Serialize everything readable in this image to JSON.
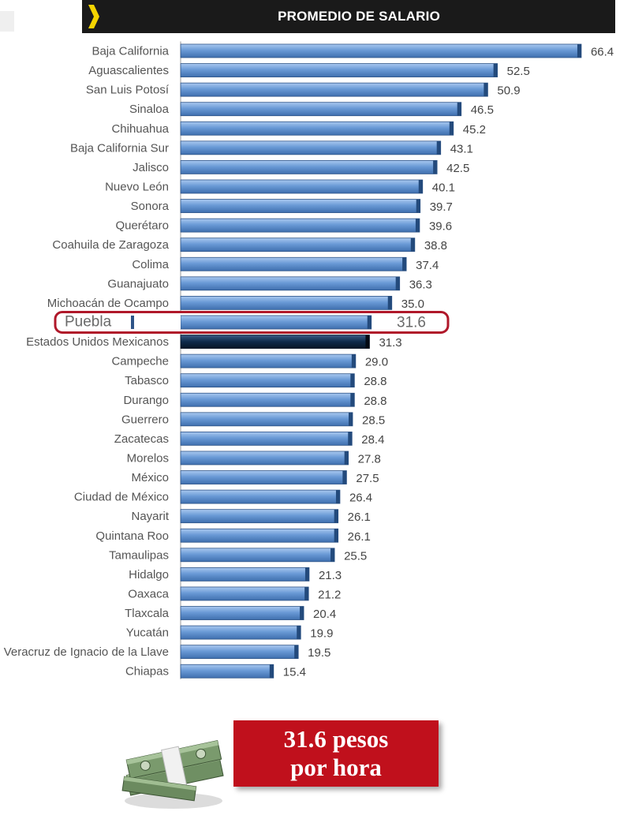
{
  "header": {
    "title": "PROMEDIO DE SALARIO"
  },
  "chart_data": {
    "type": "bar",
    "orientation": "horizontal",
    "title": "PROMEDIO DE SALARIO",
    "categories": [
      "Baja California",
      "Aguascalientes",
      "San Luis Potosí",
      "Sinaloa",
      "Chihuahua",
      "Baja California Sur",
      "Jalisco",
      "Nuevo León",
      "Sonora",
      "Querétaro",
      "Coahuila de Zaragoza",
      "Colima",
      "Guanajuato",
      "Michoacán de Ocampo",
      "Puebla",
      "Estados Unidos Mexicanos",
      "Campeche",
      "Tabasco",
      "Durango",
      "Guerrero",
      "Zacatecas",
      "Morelos",
      "México",
      "Ciudad de México",
      "Nayarit",
      "Quintana Roo",
      "Tamaulipas",
      "Hidalgo",
      "Oaxaca",
      "Tlaxcala",
      "Yucatán",
      "Veracruz de Ignacio de la Llave",
      "Chiapas"
    ],
    "values": [
      66.4,
      52.5,
      50.9,
      46.5,
      45.2,
      43.1,
      42.5,
      40.1,
      39.7,
      39.6,
      38.8,
      37.4,
      36.3,
      35.0,
      31.6,
      31.3,
      29.0,
      28.8,
      28.8,
      28.5,
      28.4,
      27.8,
      27.5,
      26.4,
      26.1,
      26.1,
      25.5,
      21.3,
      21.2,
      20.4,
      19.9,
      19.5,
      15.4
    ],
    "value_labels": [
      "66.4",
      "52.5",
      "50.9",
      "46.5",
      "45.2",
      "43.1",
      "42.5",
      "40.1",
      "39.7",
      "39.6",
      "38.8",
      "37.4",
      "36.3",
      "35.0",
      "31.6",
      "31.3",
      "29.0",
      "28.8",
      "28.8",
      "28.5",
      "28.4",
      "27.8",
      "27.5",
      "26.4",
      "26.1",
      "26.1",
      "25.5",
      "21.3",
      "21.2",
      "20.4",
      "19.9",
      "19.5",
      "15.4"
    ],
    "highlighted": "Puebla",
    "national_average": "Estados Unidos Mexicanos",
    "xlim": [
      0,
      70
    ],
    "colors": {
      "bar": "#5b8fd1",
      "national": "#0e2a4a",
      "highlight_border": "#b0182a"
    }
  },
  "callout": {
    "line1": "31.6 pesos",
    "line2": "por hora",
    "color": "#c0101c"
  },
  "icons": {
    "header": "chevron-right-icon",
    "money": "money-stack-icon"
  }
}
